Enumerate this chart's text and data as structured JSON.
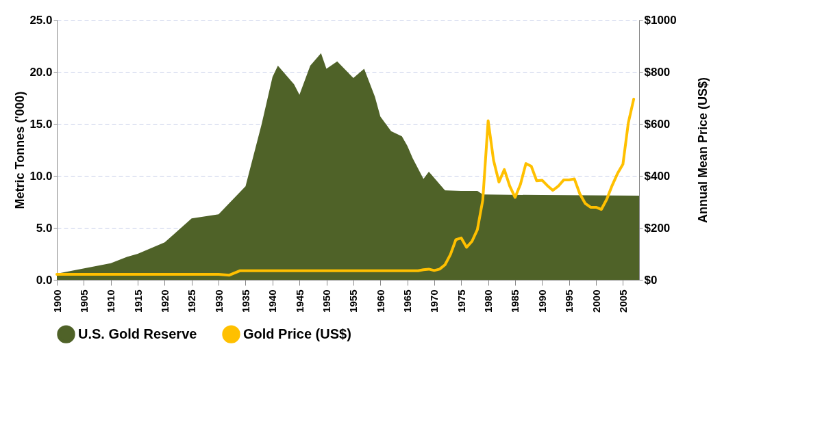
{
  "chart_data": {
    "type": "area",
    "xlabel": null,
    "ylabel": "Metric Tonnes ('000)",
    "y2label": "Annual Mean Price (US$)",
    "xlim": [
      1900,
      2008
    ],
    "xticks": [
      1900,
      1905,
      1910,
      1915,
      1920,
      1925,
      1930,
      1935,
      1940,
      1945,
      1950,
      1955,
      1960,
      1965,
      1970,
      1975,
      1980,
      1985,
      1990,
      1995,
      2000,
      2005
    ],
    "ylim": [
      0,
      25
    ],
    "yticks": [
      {
        "value": 0,
        "label": "0.0"
      },
      {
        "value": 5,
        "label": "5.0"
      },
      {
        "value": 10,
        "label": "10.0"
      },
      {
        "value": 15,
        "label": "15.0"
      },
      {
        "value": 20,
        "label": "20.0"
      },
      {
        "value": 25,
        "label": "25.0"
      }
    ],
    "y2lim": [
      0,
      1000
    ],
    "y2ticks": [
      {
        "value": 0,
        "label": "$0"
      },
      {
        "value": 200,
        "label": "$200"
      },
      {
        "value": 400,
        "label": "$400"
      },
      {
        "value": 600,
        "label": "$600"
      },
      {
        "value": 800,
        "label": "$800"
      },
      {
        "value": 1000,
        "label": "$1000"
      }
    ],
    "grid": "y",
    "legend": "bottom",
    "series": [
      {
        "name": "U.S. Gold Reserve",
        "type": "area",
        "color": "#4f6228",
        "x": [
          1900,
          1910,
          1913,
          1915,
          1920,
          1925,
          1930,
          1935,
          1938,
          1940,
          1941,
          1944,
          1945,
          1947,
          1949,
          1950,
          1952,
          1955,
          1957,
          1959,
          1960,
          1962,
          1964,
          1965,
          1966,
          1968,
          1969,
          1971,
          1972,
          1975,
          1978,
          1979,
          1990,
          2008
        ],
        "values": [
          0.6,
          1.6,
          2.2,
          2.5,
          3.6,
          5.9,
          6.3,
          9.0,
          15.0,
          19.5,
          20.6,
          18.8,
          17.8,
          20.6,
          21.8,
          20.3,
          21.0,
          19.4,
          20.3,
          17.6,
          15.7,
          14.3,
          13.8,
          12.9,
          11.7,
          9.7,
          10.4,
          9.2,
          8.6,
          8.55,
          8.55,
          8.2,
          8.15,
          8.1
        ]
      },
      {
        "name": "Gold Price (US$)",
        "type": "line",
        "axis": "y2",
        "color": "#ffc000",
        "x": [
          1900,
          1930,
          1932,
          1934,
          1967,
          1968,
          1969,
          1970,
          1971,
          1972,
          1973,
          1974,
          1975,
          1976,
          1977,
          1978,
          1979,
          1980,
          1981,
          1982,
          1983,
          1984,
          1985,
          1986,
          1987,
          1988,
          1989,
          1990,
          1991,
          1992,
          1993,
          1994,
          1995,
          1996,
          1997,
          1998,
          1999,
          2000,
          2001,
          2002,
          2003,
          2004,
          2005,
          2006,
          2007
        ],
        "values": [
          21,
          21,
          18,
          35,
          35,
          39,
          41,
          36,
          41,
          58,
          97,
          154,
          161,
          125,
          148,
          193,
          306,
          612,
          460,
          376,
          424,
          361,
          317,
          368,
          447,
          437,
          381,
          383,
          362,
          344,
          360,
          384,
          384,
          388,
          331,
          294,
          279,
          279,
          271,
          310,
          363,
          409,
          445,
          604,
          695
        ]
      }
    ]
  }
}
